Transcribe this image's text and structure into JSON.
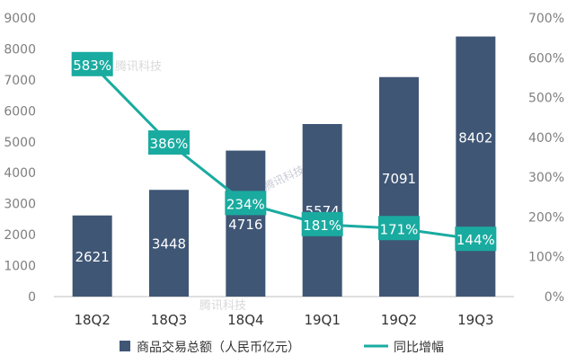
{
  "chart_data": {
    "type": "bar",
    "categories": [
      "18Q2",
      "18Q3",
      "18Q4",
      "19Q1",
      "19Q2",
      "19Q3"
    ],
    "series": [
      {
        "name": "商品交易总额（人民币亿元）",
        "type": "bar",
        "axis": "left",
        "values": [
          2621,
          3448,
          4716,
          5574,
          7091,
          8402
        ],
        "labels": [
          "2621",
          "3448",
          "4716",
          "5574",
          "7091",
          "8402"
        ],
        "color": "#3f5675"
      },
      {
        "name": "同比增幅",
        "type": "line",
        "axis": "right",
        "values": [
          583,
          386,
          234,
          181,
          171,
          144
        ],
        "labels": [
          "583%",
          "386%",
          "234%",
          "181%",
          "171%",
          "144%"
        ],
        "color": "#1aaba0"
      }
    ],
    "y_left": {
      "min": 0,
      "max": 9000,
      "step": 1000,
      "tick_labels": [
        "0",
        "1000",
        "2000",
        "3000",
        "4000",
        "5000",
        "6000",
        "7000",
        "8000",
        "9000"
      ]
    },
    "y_right": {
      "min": 0,
      "max": 700,
      "step": 100,
      "tick_labels": [
        "0%",
        "100%",
        "200%",
        "300%",
        "400%",
        "500%",
        "600%",
        "700%"
      ]
    },
    "grid": false,
    "legend_position": "bottom",
    "watermark": "腾讯科技"
  }
}
